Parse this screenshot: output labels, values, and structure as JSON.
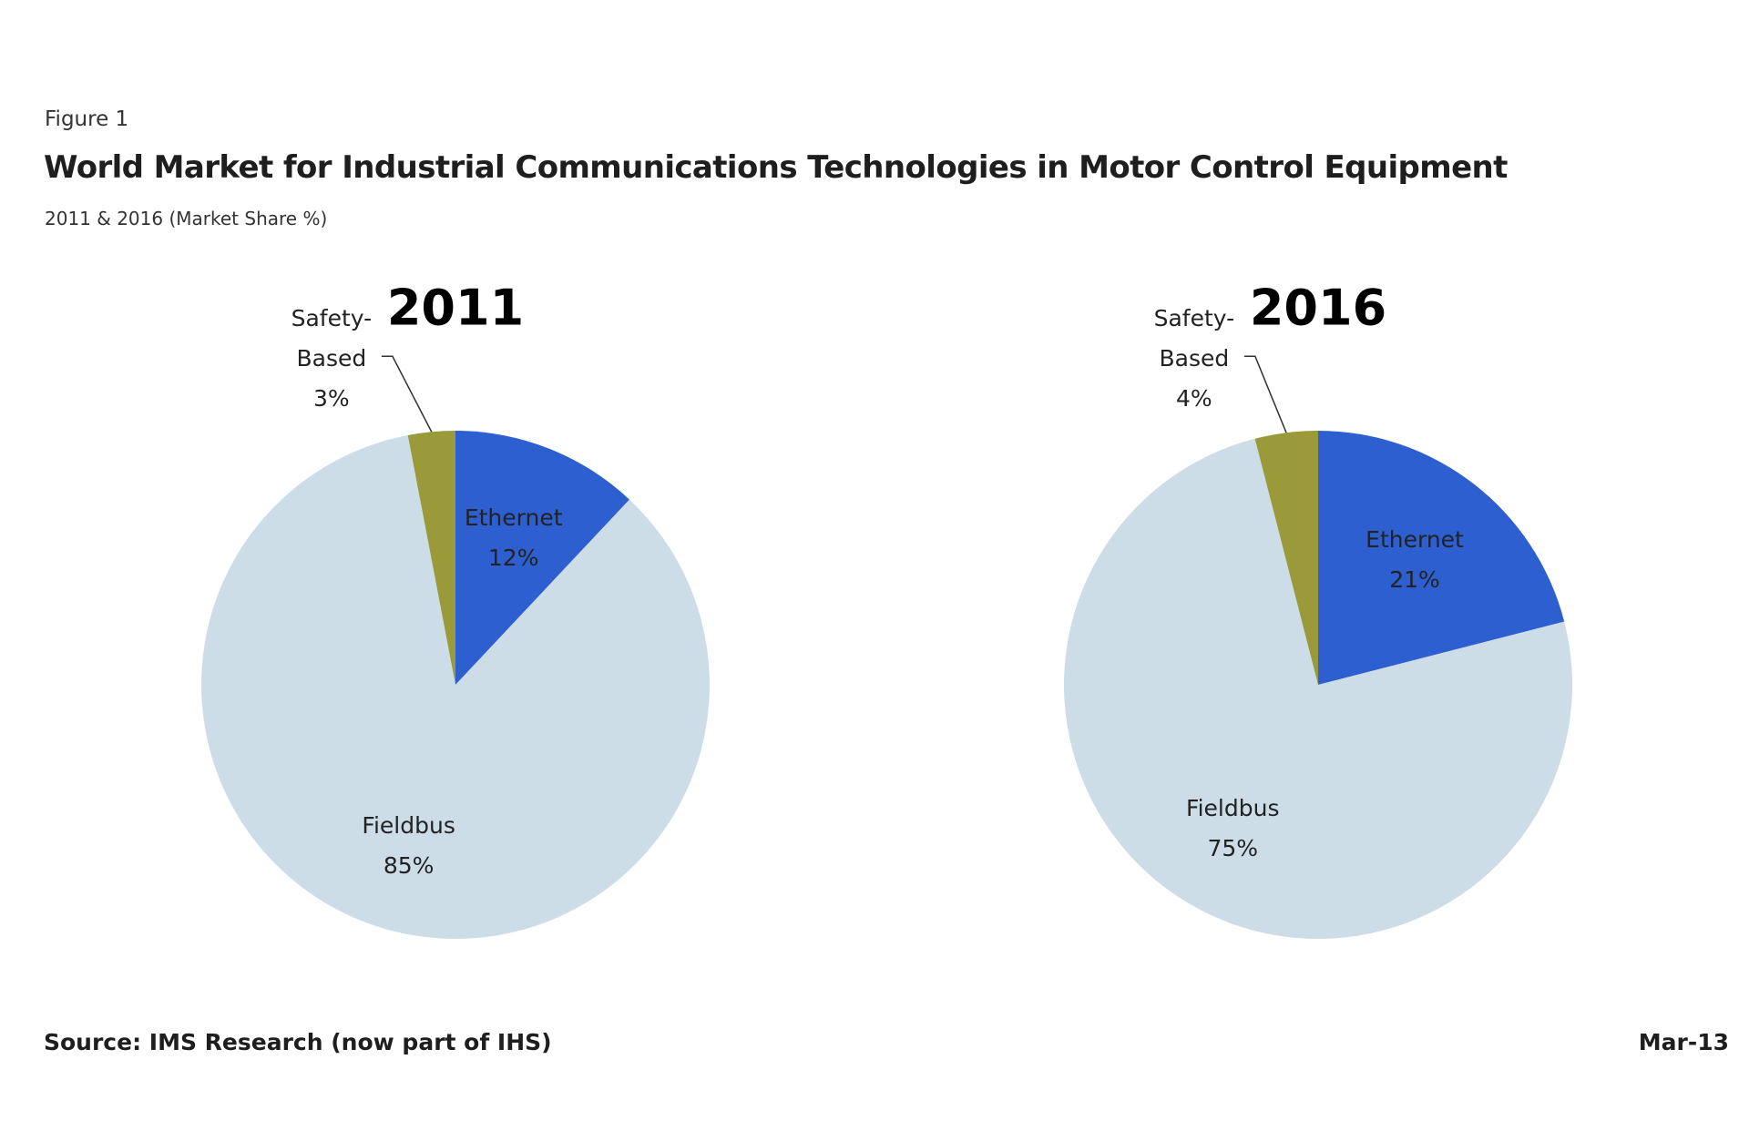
{
  "figure_label": "Figure 1",
  "title": "World Market for Industrial Communications Technologies in Motor Control Equipment",
  "subtitle": "2011 & 2016 (Market Share %)",
  "chart_data": [
    {
      "type": "pie",
      "title": "2011",
      "categories": [
        "Ethernet",
        "Fieldbus",
        "Safety-Based"
      ],
      "values": [
        12,
        85,
        3
      ],
      "value_labels": [
        "12%",
        "85%",
        "3%"
      ],
      "colors": [
        "#2e5fd0",
        "#ccdde8",
        "#9a9a3a"
      ]
    },
    {
      "type": "pie",
      "title": "2016",
      "categories": [
        "Ethernet",
        "Fieldbus",
        "Safety-Based"
      ],
      "values": [
        21,
        75,
        4
      ],
      "value_labels": [
        "21%",
        "75%",
        "4%"
      ],
      "colors": [
        "#2e5fd0",
        "#ccdde8",
        "#9a9a3a"
      ]
    }
  ],
  "source": "Source: IMS Research (now part of IHS)",
  "date": "Mar-13"
}
